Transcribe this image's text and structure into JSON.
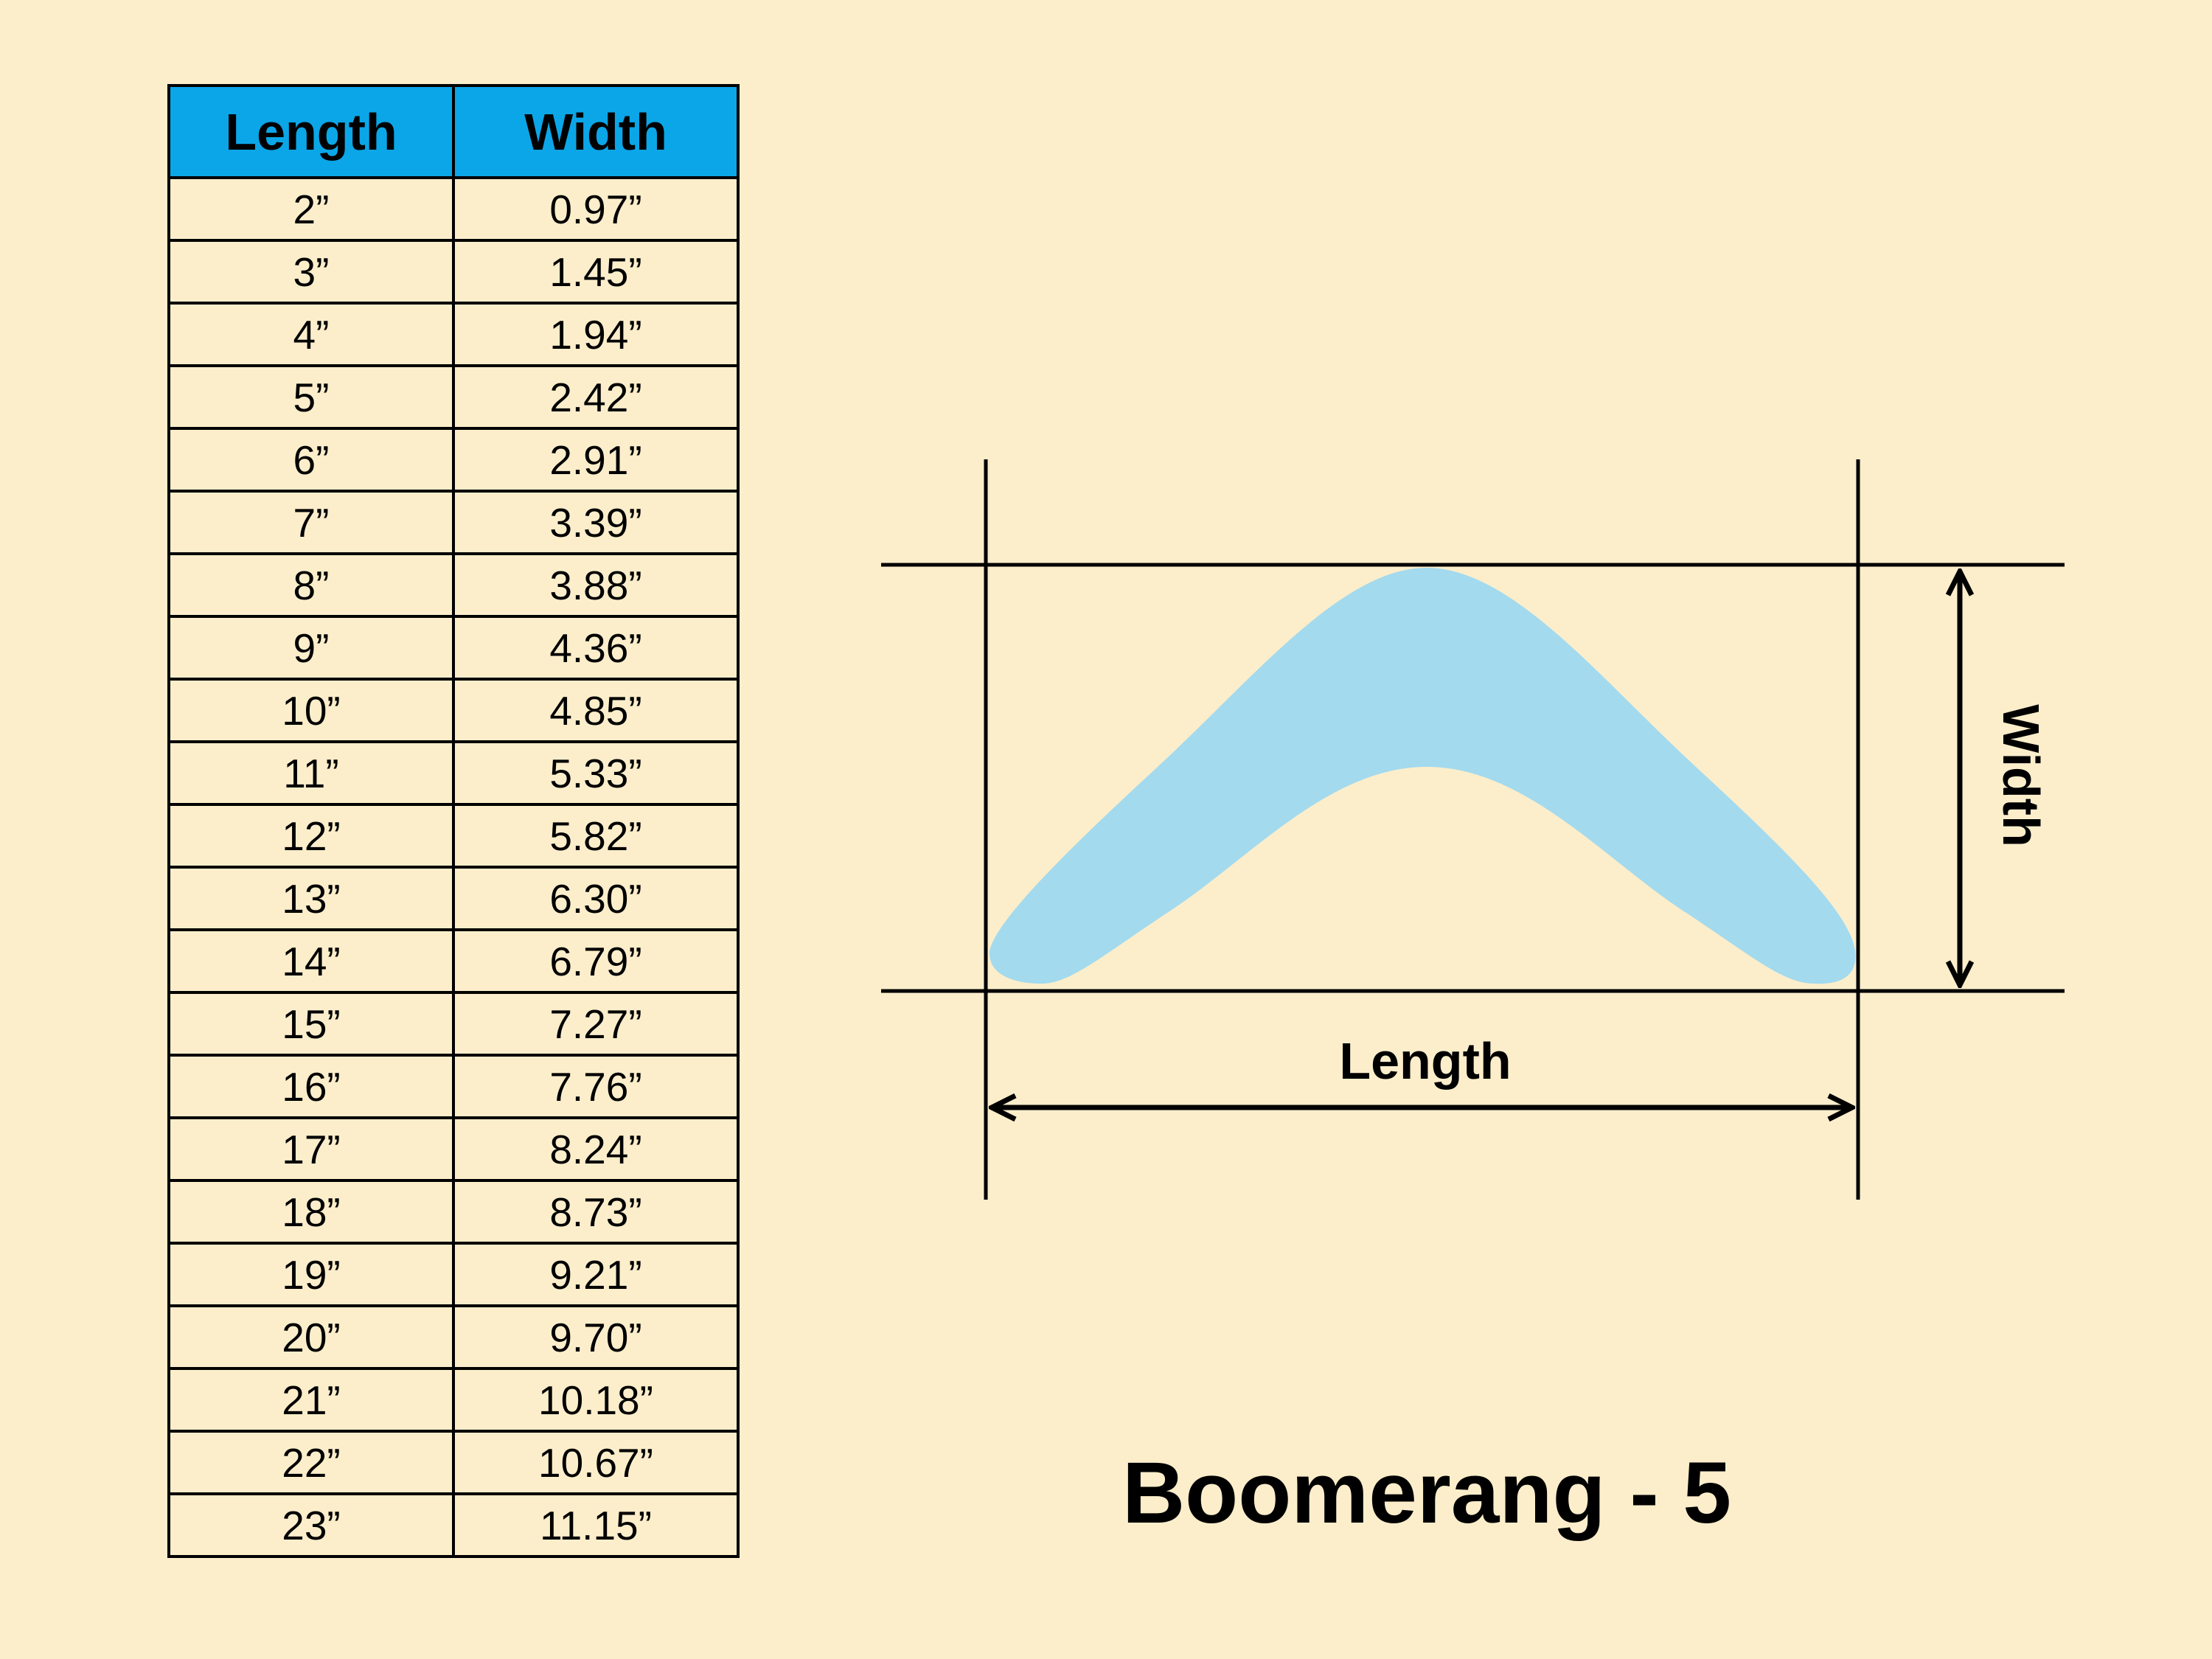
{
  "table": {
    "headers": [
      "Length",
      "Width"
    ],
    "rows": [
      [
        "2”",
        "0.97”"
      ],
      [
        "3”",
        "1.45”"
      ],
      [
        "4”",
        "1.94”"
      ],
      [
        "5”",
        "2.42”"
      ],
      [
        "6”",
        "2.91”"
      ],
      [
        "7”",
        "3.39”"
      ],
      [
        "8”",
        "3.88”"
      ],
      [
        "9”",
        "4.36”"
      ],
      [
        "10”",
        "4.85”"
      ],
      [
        "11”",
        "5.33”"
      ],
      [
        "12”",
        "5.82”"
      ],
      [
        "13”",
        "6.30”"
      ],
      [
        "14”",
        "6.79”"
      ],
      [
        "15”",
        "7.27”"
      ],
      [
        "16”",
        "7.76”"
      ],
      [
        "17”",
        "8.24”"
      ],
      [
        "18”",
        "8.73”"
      ],
      [
        "19”",
        "9.21”"
      ],
      [
        "20”",
        "9.70”"
      ],
      [
        "21”",
        "10.18”"
      ],
      [
        "22”",
        "10.67”"
      ],
      [
        "23”",
        "11.15”"
      ]
    ]
  },
  "diagram": {
    "length_label": "Length",
    "width_label": "Width"
  },
  "title": "Boomerang - 5",
  "colors": {
    "background": "#FCEECB",
    "header_fill": "#0BA6E8",
    "boomerang_fill": "#A3DAEE",
    "line": "#000000"
  }
}
